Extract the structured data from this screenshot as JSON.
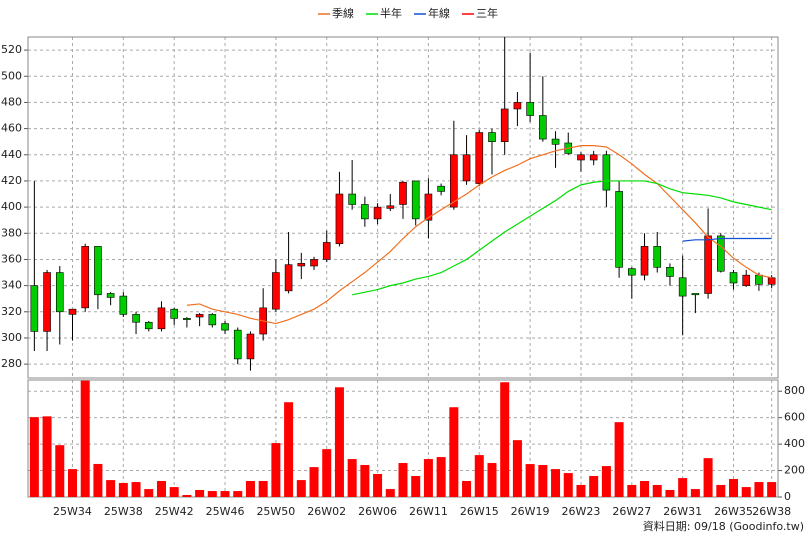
{
  "chart_data": {
    "type": "candlestick",
    "legend": "top",
    "grid": true,
    "up_color": "#ff0000",
    "down_color": "#00cc00",
    "categories": [
      null,
      null,
      null,
      "25W34",
      null,
      null,
      null,
      "25W38",
      null,
      null,
      null,
      "25W42",
      null,
      null,
      null,
      "25W46",
      null,
      null,
      null,
      "25W50",
      null,
      null,
      null,
      "26W02",
      null,
      null,
      null,
      "26W06",
      null,
      null,
      null,
      "26W11",
      null,
      null,
      null,
      "26W15",
      null,
      null,
      null,
      "26W19",
      null,
      null,
      null,
      "26W23",
      null,
      null,
      null,
      "26W27",
      null,
      null,
      null,
      "26W31",
      null,
      null,
      null,
      "26W35",
      null,
      null,
      "26W38"
    ],
    "candles": {
      "open": [
        340,
        305,
        350,
        318,
        323,
        370,
        334,
        332,
        318,
        312,
        307,
        322,
        315,
        316,
        318,
        311,
        306,
        284,
        303,
        322,
        336,
        355,
        355,
        360,
        372,
        410,
        402,
        391,
        399,
        402,
        420,
        390,
        416,
        400,
        420,
        418,
        457,
        450,
        475,
        480,
        470,
        452,
        449,
        436,
        436,
        440,
        412,
        353,
        348,
        370,
        354,
        346,
        334,
        334,
        378,
        350,
        340,
        348,
        341
      ],
      "high": [
        420,
        352,
        355,
        322,
        372,
        370,
        335,
        335,
        320,
        313,
        328,
        323,
        316,
        319,
        319,
        313,
        308,
        305,
        338,
        360,
        381,
        365,
        362,
        382,
        427,
        436,
        408,
        403,
        410,
        420,
        420,
        422,
        418,
        466,
        455,
        459,
        460,
        530,
        488,
        518,
        500,
        458,
        457,
        442,
        443,
        443,
        420,
        354,
        380,
        381,
        357,
        363,
        334,
        399,
        380,
        352,
        352,
        350,
        348
      ],
      "low": [
        290,
        290,
        295,
        298,
        320,
        322,
        325,
        316,
        303,
        305,
        305,
        310,
        308,
        309,
        308,
        303,
        280,
        275,
        298,
        320,
        334,
        345,
        352,
        358,
        370,
        398,
        385,
        387,
        397,
        391,
        386,
        376,
        409,
        398,
        417,
        416,
        425,
        440,
        462,
        465,
        450,
        430,
        440,
        427,
        432,
        400,
        346,
        330,
        344,
        350,
        340,
        302,
        319,
        330,
        350,
        337,
        339,
        336,
        338
      ],
      "close": [
        305,
        350,
        320,
        322,
        370,
        333,
        331,
        318,
        312,
        307,
        323,
        315,
        314,
        318,
        310,
        306,
        284,
        303,
        323,
        350,
        356,
        357,
        360,
        373,
        410,
        402,
        391,
        400,
        401,
        419,
        391,
        410,
        412,
        440,
        440,
        457,
        450,
        475,
        480,
        470,
        452,
        448,
        441,
        440,
        440,
        413,
        354,
        348,
        370,
        354,
        347,
        332,
        333,
        378,
        351,
        342,
        348,
        341,
        346
      ]
    },
    "ylim": [
      269.4,
      530
    ],
    "yticks": [
      280,
      300,
      320,
      340,
      360,
      380,
      400,
      420,
      440,
      460,
      480,
      500,
      520
    ],
    "series": [
      {
        "name": "季線",
        "color": "#f07020",
        "values": [
          null,
          null,
          null,
          null,
          null,
          null,
          null,
          null,
          null,
          null,
          null,
          null,
          325,
          326,
          322,
          320,
          318,
          315,
          313,
          311,
          314,
          318,
          322,
          328,
          336,
          343,
          350,
          358,
          366,
          376,
          385,
          392,
          398,
          404,
          410,
          417,
          423,
          428,
          432,
          437,
          440,
          443,
          445,
          447,
          447,
          446,
          440,
          433,
          425,
          418,
          408,
          398,
          388,
          377,
          370,
          361,
          354,
          348,
          346
        ]
      },
      {
        "name": "半年",
        "color": "#00dd00",
        "values": [
          null,
          null,
          null,
          null,
          null,
          null,
          null,
          null,
          null,
          null,
          null,
          null,
          null,
          null,
          null,
          null,
          null,
          null,
          null,
          null,
          null,
          null,
          null,
          null,
          null,
          333,
          335,
          337,
          340,
          342,
          345,
          347,
          350,
          355,
          360,
          367,
          374,
          381,
          387,
          393,
          399,
          405,
          412,
          417,
          419,
          420,
          420,
          420,
          420,
          418,
          414,
          411,
          410,
          409,
          407,
          404,
          402,
          400,
          398
        ]
      },
      {
        "name": "年線",
        "color": "#1050d0",
        "values": [
          null,
          null,
          null,
          null,
          null,
          null,
          null,
          null,
          null,
          null,
          null,
          null,
          null,
          null,
          null,
          null,
          null,
          null,
          null,
          null,
          null,
          null,
          null,
          null,
          null,
          null,
          null,
          null,
          null,
          null,
          null,
          null,
          null,
          null,
          null,
          null,
          null,
          null,
          null,
          null,
          null,
          null,
          null,
          null,
          null,
          null,
          null,
          null,
          null,
          null,
          null,
          374,
          375,
          375,
          376,
          376,
          376,
          376,
          376
        ]
      },
      {
        "name": "三年",
        "color": "#ff0000",
        "values": [
          null,
          null,
          null,
          null,
          null,
          null,
          null,
          null,
          null,
          null,
          null,
          null,
          null,
          null,
          null,
          null,
          null,
          null,
          null,
          null,
          null,
          null,
          null,
          null,
          null,
          null,
          null,
          null,
          null,
          null,
          null,
          null,
          null,
          null,
          null,
          null,
          null,
          null,
          null,
          null,
          null,
          null,
          null,
          null,
          null,
          null,
          null,
          null,
          null,
          null,
          null,
          null,
          null,
          null,
          null,
          null,
          null,
          null,
          null
        ]
      }
    ],
    "volume": {
      "color": "#ff0000",
      "values": [
        604,
        610,
        392,
        211,
        880,
        250,
        128,
        106,
        113,
        60,
        121,
        75,
        15,
        53,
        45,
        45,
        45,
        121,
        121,
        408,
        717,
        128,
        226,
        362,
        830,
        287,
        242,
        174,
        60,
        257,
        159,
        287,
        302,
        679,
        121,
        317,
        257,
        868,
        430,
        249,
        242,
        211,
        181,
        91,
        159,
        234,
        566,
        91,
        121,
        91,
        53,
        143,
        60,
        294,
        91,
        136,
        75,
        113,
        113
      ],
      "ylim": [
        0,
        885
      ],
      "yticks": [
        0,
        200,
        400,
        600,
        800
      ]
    },
    "footnote": "資料日期: 09/18 (Goodinfo.tw)"
  }
}
